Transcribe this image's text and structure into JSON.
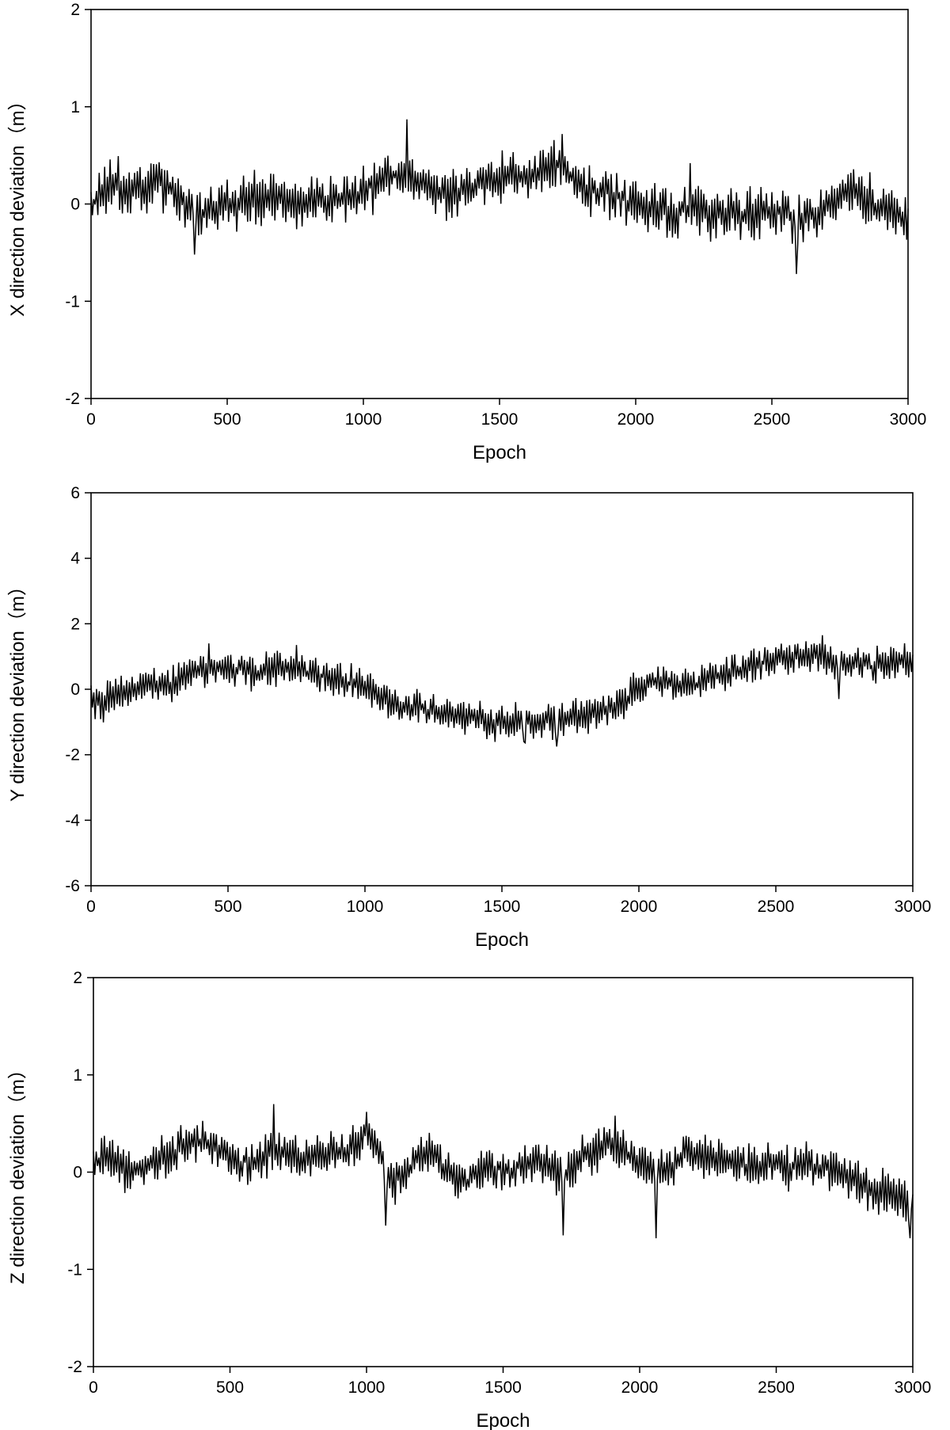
{
  "chart_data": [
    {
      "type": "line",
      "xlabel": "Epoch",
      "ylabel": "X direction deviation（m）",
      "xlim": [
        0,
        3000
      ],
      "ylim": [
        -2,
        2
      ],
      "xticks": [
        0,
        500,
        1000,
        1500,
        2000,
        2500,
        3000
      ],
      "yticks": [
        -2,
        -1,
        0,
        1,
        2
      ],
      "grid": false,
      "line_color": "#000000",
      "series": [
        {
          "x": [
            0,
            50,
            100,
            150,
            200,
            250,
            300,
            350,
            400,
            450,
            500,
            550,
            600,
            650,
            700,
            750,
            800,
            850,
            900,
            950,
            1000,
            1050,
            1100,
            1150,
            1200,
            1250,
            1300,
            1350,
            1400,
            1450,
            1500,
            1550,
            1600,
            1650,
            1700,
            1750,
            1800,
            1850,
            1900,
            1950,
            2000,
            2050,
            2100,
            2150,
            2200,
            2250,
            2300,
            2350,
            2400,
            2450,
            2500,
            2550,
            2600,
            2650,
            2700,
            2750,
            2800,
            2850,
            2900,
            2950,
            3000
          ],
          "values": [
            0.0,
            0.15,
            0.2,
            0.1,
            0.15,
            0.2,
            0.15,
            0.0,
            -0.15,
            -0.05,
            0.0,
            0.0,
            0.05,
            0.05,
            0.05,
            0.0,
            0.0,
            0.05,
            0.05,
            0.05,
            0.15,
            0.2,
            0.3,
            0.3,
            0.25,
            0.2,
            0.1,
            0.1,
            0.2,
            0.25,
            0.25,
            0.3,
            0.3,
            0.35,
            0.4,
            0.35,
            0.2,
            0.15,
            0.1,
            0.05,
            0.0,
            -0.05,
            -0.1,
            -0.1,
            -0.05,
            -0.1,
            -0.1,
            -0.1,
            -0.1,
            -0.1,
            -0.1,
            -0.1,
            -0.15,
            -0.15,
            -0.05,
            0.1,
            0.15,
            0.05,
            -0.05,
            -0.1,
            -0.2
          ],
          "noise_amplitude": 0.28,
          "spikes": [
            [
              1160,
              0.87
            ],
            [
              1730,
              0.72
            ],
            [
              2590,
              -0.72
            ],
            [
              380,
              -0.52
            ],
            [
              2200,
              0.42
            ]
          ]
        }
      ]
    },
    {
      "type": "line",
      "xlabel": "Epoch",
      "ylabel": "Y direction deviation（m）",
      "xlim": [
        0,
        3000
      ],
      "ylim": [
        -6,
        6
      ],
      "xticks": [
        0,
        500,
        1000,
        1500,
        2000,
        2500,
        3000
      ],
      "yticks": [
        -6,
        -4,
        -2,
        0,
        2,
        4,
        6
      ],
      "grid": false,
      "line_color": "#000000",
      "series": [
        {
          "x": [
            0,
            50,
            100,
            150,
            200,
            250,
            300,
            350,
            400,
            450,
            500,
            550,
            600,
            650,
            700,
            750,
            800,
            850,
            900,
            950,
            1000,
            1050,
            1100,
            1150,
            1200,
            1250,
            1300,
            1350,
            1400,
            1450,
            1500,
            1550,
            1600,
            1650,
            1700,
            1750,
            1800,
            1850,
            1900,
            1950,
            2000,
            2050,
            2100,
            2150,
            2200,
            2250,
            2300,
            2350,
            2400,
            2450,
            2500,
            2550,
            2600,
            2650,
            2700,
            2750,
            2800,
            2850,
            2900,
            2950,
            3000
          ],
          "values": [
            -0.3,
            -0.4,
            -0.2,
            0.0,
            0.1,
            0.1,
            0.2,
            0.4,
            0.6,
            0.7,
            0.6,
            0.6,
            0.5,
            0.6,
            0.6,
            0.6,
            0.5,
            0.4,
            0.3,
            0.2,
            0.1,
            -0.2,
            -0.4,
            -0.5,
            -0.6,
            -0.7,
            -0.8,
            -0.8,
            -0.9,
            -1.0,
            -1.0,
            -1.0,
            -1.0,
            -1.0,
            -0.9,
            -0.8,
            -0.8,
            -0.7,
            -0.6,
            -0.3,
            0.0,
            0.2,
            0.3,
            0.2,
            0.1,
            0.3,
            0.5,
            0.6,
            0.7,
            0.8,
            0.8,
            0.9,
            1.0,
            1.0,
            0.9,
            0.8,
            0.8,
            0.7,
            0.8,
            0.9,
            0.8
          ],
          "noise_amplitude": 0.6,
          "spikes": [
            [
              430,
              1.4
            ],
            [
              750,
              1.35
            ],
            [
              1700,
              -1.75
            ],
            [
              1580,
              -1.6
            ],
            [
              2730,
              -0.3
            ],
            [
              2670,
              1.65
            ]
          ]
        }
      ]
    },
    {
      "type": "line",
      "xlabel": "Epoch",
      "ylabel": "Z direction deviation（m）",
      "xlim": [
        0,
        3000
      ],
      "ylim": [
        -2,
        2
      ],
      "xticks": [
        0,
        500,
        1000,
        1500,
        2000,
        2500,
        3000
      ],
      "yticks": [
        -2,
        -1,
        0,
        1,
        2
      ],
      "grid": false,
      "line_color": "#000000",
      "series": [
        {
          "x": [
            0,
            50,
            100,
            150,
            200,
            250,
            300,
            350,
            400,
            450,
            500,
            550,
            600,
            650,
            700,
            750,
            800,
            850,
            900,
            950,
            1000,
            1050,
            1100,
            1150,
            1200,
            1250,
            1300,
            1350,
            1400,
            1450,
            1500,
            1550,
            1600,
            1650,
            1700,
            1750,
            1800,
            1850,
            1900,
            1950,
            2000,
            2050,
            2100,
            2150,
            2200,
            2250,
            2300,
            2350,
            2400,
            2450,
            2500,
            2550,
            2600,
            2650,
            2700,
            2750,
            2800,
            2850,
            2900,
            2950,
            3000
          ],
          "values": [
            0.1,
            0.15,
            0.05,
            0.0,
            0.1,
            0.15,
            0.2,
            0.3,
            0.35,
            0.25,
            0.15,
            0.1,
            0.1,
            0.2,
            0.2,
            0.15,
            0.15,
            0.2,
            0.25,
            0.25,
            0.4,
            0.2,
            -0.1,
            0.0,
            0.2,
            0.15,
            0.0,
            -0.1,
            -0.05,
            0.05,
            0.0,
            0.05,
            0.1,
            0.1,
            0.0,
            0.05,
            0.15,
            0.25,
            0.3,
            0.2,
            0.05,
            0.0,
            0.05,
            0.15,
            0.2,
            0.15,
            0.15,
            0.1,
            0.05,
            0.05,
            0.1,
            0.05,
            0.1,
            0.05,
            0.05,
            0.0,
            -0.1,
            -0.2,
            -0.2,
            -0.25,
            -0.35
          ],
          "noise_amplitude": 0.24,
          "spikes": [
            [
              660,
              0.7
            ],
            [
              1070,
              -0.55
            ],
            [
              1720,
              -0.65
            ],
            [
              2060,
              -0.68
            ],
            [
              2990,
              -0.68
            ],
            [
              1000,
              0.62
            ],
            [
              1910,
              0.58
            ]
          ]
        }
      ]
    }
  ]
}
